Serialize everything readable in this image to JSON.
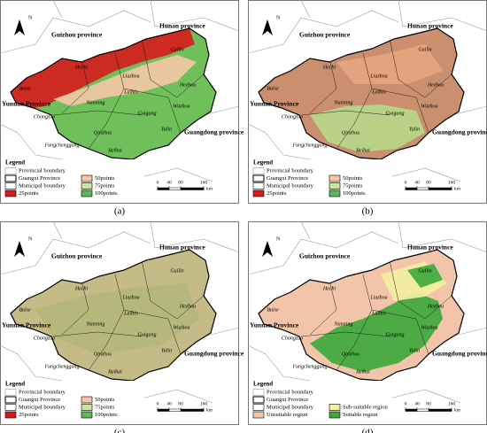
{
  "panels": [
    {
      "caption": "(a)",
      "north": "N",
      "provinces": [
        "Guizhou province",
        "Hunan province",
        "Yunnan Province",
        "Guangdong province"
      ],
      "cities": [
        "Hechi",
        "Guilin",
        "Liuzhou",
        "Hezhou",
        "Baise",
        "Laibin",
        "Wuzhou",
        "Nanning",
        "Guigang",
        "Yulin",
        "Chongzuo",
        "Qinzhou",
        "Fangchenggang",
        "Beihai"
      ],
      "legend_title": "Legend",
      "legend": [
        {
          "label": "Provincial boundary",
          "color": "#ffffff"
        },
        {
          "label": "Guangxi Province",
          "color": "#ffffff"
        },
        {
          "label": "Municipal boundary",
          "color": "#ffffff"
        },
        {
          "label": "25points",
          "color": "#d7191c"
        },
        {
          "label": "50points",
          "color": "#f5c6a5"
        },
        {
          "label": "75points",
          "color": "#c8e6a0"
        },
        {
          "label": "100points",
          "color": "#5cb85c"
        }
      ],
      "scale_ticks": [
        0,
        40,
        80,
        160
      ],
      "scale_unit": "km"
    },
    {
      "caption": "(b)",
      "north": "N",
      "provinces": [
        "Guizhou province",
        "Hunan province",
        "Yunnan Province",
        "Guangdong province"
      ],
      "cities": [
        "Hechi",
        "Guilin",
        "Liuzhou",
        "Hezhou",
        "Baise",
        "Laibin",
        "Wuzhou",
        "Nanning",
        "Guigang",
        "Yulin",
        "Chongzuo",
        "Qinzhou",
        "Fangchenggang",
        "Beihai"
      ],
      "legend_title": "Legend",
      "legend": [
        {
          "label": "Provincial boundary",
          "color": "#ffffff"
        },
        {
          "label": "Guangxi Province",
          "color": "#ffffff"
        },
        {
          "label": "Municipal boundary",
          "color": "#ffffff"
        },
        {
          "label": "25points",
          "color": "#d7191c"
        },
        {
          "label": "50points",
          "color": "#f5c6a5"
        },
        {
          "label": "75points",
          "color": "#c8e6a0"
        },
        {
          "label": "100points",
          "color": "#5cb85c"
        }
      ],
      "scale_ticks": [
        0,
        40,
        80,
        160
      ],
      "scale_unit": "km"
    },
    {
      "caption": "(c)",
      "north": "N",
      "provinces": [
        "Guizhou province",
        "Hunan province",
        "Yunnan Province",
        "Guangdong province"
      ],
      "cities": [
        "Hechi",
        "Guilin",
        "Liuzhou",
        "Hezhou",
        "Baise",
        "Laibin",
        "Wuzhou",
        "Nanning",
        "Guigang",
        "Yulin",
        "Chongzuo",
        "Qinzhou",
        "Fangchenggang",
        "Beihai"
      ],
      "legend_title": "Legend",
      "legend": [
        {
          "label": "Provincial boundary",
          "color": "#ffffff"
        },
        {
          "label": "Guangxi Province",
          "color": "#ffffff"
        },
        {
          "label": "Municipal boundary",
          "color": "#ffffff"
        },
        {
          "label": "25points",
          "color": "#d7191c"
        },
        {
          "label": "50points",
          "color": "#f5c6a5"
        },
        {
          "label": "75points",
          "color": "#c8e6a0"
        },
        {
          "label": "100points",
          "color": "#5cb85c"
        }
      ],
      "scale_ticks": [
        0,
        40,
        80,
        160
      ],
      "scale_unit": "km"
    },
    {
      "caption": "(d)",
      "north": "N",
      "provinces": [
        "Guizhou province",
        "Hunan province",
        "Yunnan Province",
        "Guangdong province"
      ],
      "cities": [
        "Hechi",
        "Guilin",
        "Liuzhou",
        "Hezhou",
        "Baise",
        "Laibin",
        "Wuzhou",
        "Nanning",
        "Guigang",
        "Yulin",
        "Chongzuo",
        "Qinzhou",
        "Fangchenggang",
        "Beihai"
      ],
      "legend_title": "Legend",
      "legend": [
        {
          "label": "Provincial boundary",
          "color": "#ffffff"
        },
        {
          "label": "Guangxi Province",
          "color": "#ffffff"
        },
        {
          "label": "Municipal boundary",
          "color": "#ffffff"
        },
        {
          "label": "Unsuitable region",
          "color": "#f2c4aa"
        },
        {
          "label": "Sub-suitable region",
          "color": "#f3f0a0"
        },
        {
          "label": "Suitable region",
          "color": "#3aa83a"
        }
      ],
      "scale_ticks": [
        0,
        40,
        80,
        160
      ],
      "scale_unit": "km"
    }
  ]
}
